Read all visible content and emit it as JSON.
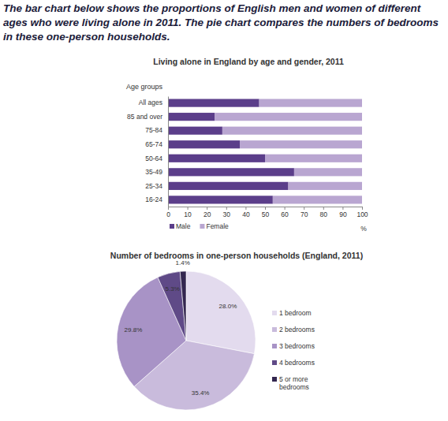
{
  "header": {
    "text": "The bar chart below shows the proportions of English men and women of different ages who were living alone in 2011. The pie chart compares the numbers of bedrooms in these one-person households."
  },
  "chart_data": [
    {
      "type": "bar",
      "orientation": "horizontal",
      "stacked": true,
      "title": "Living alone in England by age and gender, 2011",
      "ylabel": "Age groups",
      "xlabel": "%",
      "categories": [
        "All ages",
        "85 and over",
        "75-84",
        "65-74",
        "50-64",
        "35-49",
        "25-34",
        "16-24"
      ],
      "series": [
        {
          "name": "Male",
          "color": "#5b3e8a",
          "values": [
            47,
            24,
            28,
            37,
            50,
            65,
            62,
            54
          ]
        },
        {
          "name": "Female",
          "color": "#b9a6d1",
          "values": [
            53,
            76,
            72,
            63,
            50,
            35,
            38,
            46
          ]
        }
      ],
      "xlim": [
        0,
        100
      ],
      "xticks": [
        0,
        10,
        20,
        30,
        40,
        50,
        60,
        70,
        80,
        90,
        100
      ],
      "legend": "bottom"
    },
    {
      "type": "pie",
      "title": "Number of bedrooms in one-person households (England, 2011)",
      "categories": [
        "1 bedroom",
        "2 bedrooms",
        "3 bedrooms",
        "4 bedrooms",
        "5 or more bedrooms"
      ],
      "values": [
        28.0,
        35.4,
        29.8,
        5.3,
        1.4
      ],
      "value_labels": [
        "28.0%",
        "35.4%",
        "29.8%",
        "5.3%",
        "1.4%"
      ],
      "colors": [
        "#e3dbee",
        "#c9bbdc",
        "#a893c6",
        "#5f4a87",
        "#33264f"
      ],
      "data_labels": true,
      "legend": "right"
    }
  ]
}
